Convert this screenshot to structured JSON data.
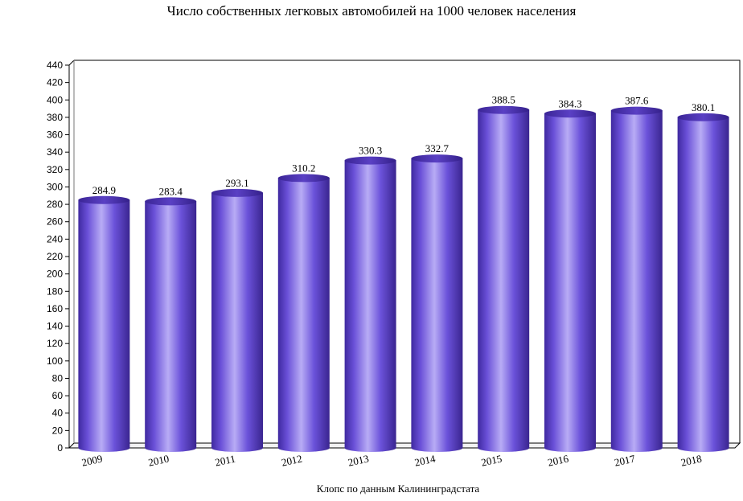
{
  "chart_data": {
    "type": "bar",
    "title": "Число собственных легковых автомобилей на 1000 человек населения",
    "source": "Клопс по данным Калининградстата",
    "categories": [
      "2009",
      "2010",
      "2011",
      "2012",
      "2013",
      "2014",
      "2015",
      "2016",
      "2017",
      "2018"
    ],
    "values": [
      284.9,
      283.4,
      293.1,
      310.2,
      330.3,
      332.7,
      388.5,
      384.3,
      387.6,
      380.1
    ],
    "value_labels": [
      "284.9",
      "283.4",
      "293.1",
      "310.2",
      "330.3",
      "332.7",
      "388.5",
      "384.3",
      "387.6",
      "380.1"
    ],
    "ylim": [
      0,
      440
    ],
    "yticks": [
      "0",
      "20",
      "40",
      "60",
      "80",
      "100",
      "120",
      "140",
      "160",
      "180",
      "200",
      "220",
      "240",
      "260",
      "280",
      "300",
      "320",
      "340",
      "360",
      "380",
      "400",
      "420",
      "440"
    ],
    "xlabel": "",
    "ylabel": "",
    "grid": false,
    "legend": "none",
    "bar_color": "#5b3fc8",
    "bar_highlight": "#b3a6f2",
    "bar_shadow": "#3a2590",
    "bar_style": "3d-cylinder"
  }
}
